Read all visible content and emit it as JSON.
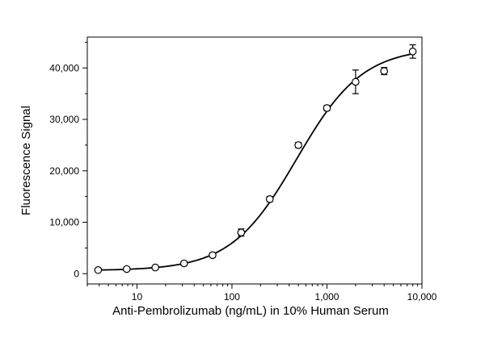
{
  "chart_data": {
    "type": "scatter",
    "xscale": "log",
    "xlim": [
      3,
      10000
    ],
    "ylim": [
      -2000,
      46000
    ],
    "xlabel": "Anti-Pembrolizumab (ng/mL) in 10% Human Serum",
    "ylabel": "Fluorescence Signal",
    "grid": false,
    "x_ticks": [
      {
        "value": 10,
        "label": "10"
      },
      {
        "value": 100,
        "label": "100"
      },
      {
        "value": 1000,
        "label": "1,000"
      },
      {
        "value": 10000,
        "label": "10,000"
      }
    ],
    "y_ticks": [
      {
        "value": 0,
        "label": "0"
      },
      {
        "value": 10000,
        "label": "10,000"
      },
      {
        "value": 20000,
        "label": "20,000"
      },
      {
        "value": 30000,
        "label": "30,000"
      },
      {
        "value": 40000,
        "label": "40,000"
      }
    ],
    "points": [
      {
        "x": 3.9,
        "y": 700,
        "err": 300
      },
      {
        "x": 7.8,
        "y": 900,
        "err": 300
      },
      {
        "x": 15.6,
        "y": 1200,
        "err": 300
      },
      {
        "x": 31.3,
        "y": 2000,
        "err": 400
      },
      {
        "x": 62.5,
        "y": 3600,
        "err": 400
      },
      {
        "x": 125,
        "y": 8000,
        "err": 700
      },
      {
        "x": 250,
        "y": 14500,
        "err": 500
      },
      {
        "x": 500,
        "y": 25000,
        "err": 500
      },
      {
        "x": 1000,
        "y": 32200,
        "err": 500
      },
      {
        "x": 2000,
        "y": 37300,
        "err": 2300
      },
      {
        "x": 4000,
        "y": 39400,
        "err": 700
      },
      {
        "x": 8000,
        "y": 43200,
        "err": 1300
      }
    ],
    "fit": {
      "model": "4PL",
      "bottom": 600,
      "top": 44000,
      "ec50": 480,
      "hill": 1.25
    }
  }
}
